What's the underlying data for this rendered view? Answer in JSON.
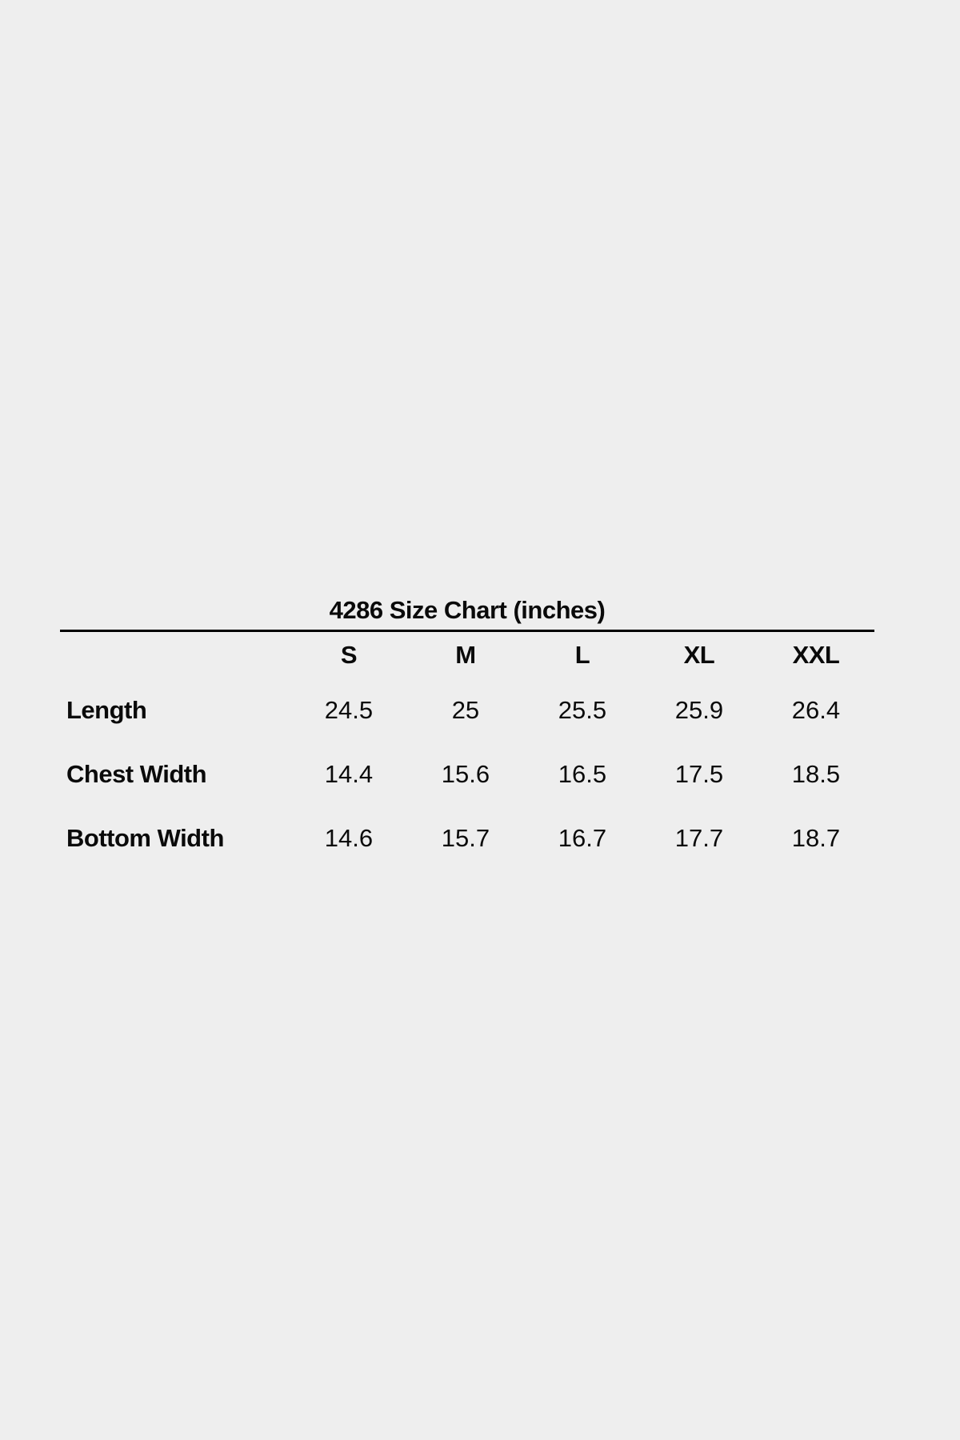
{
  "page": {
    "background_color": "#eeeeee",
    "text_color": "#0a0a0a",
    "rule_color": "#000000"
  },
  "chart_data": {
    "type": "table",
    "title": "4286 Size Chart (inches)",
    "unit": "inches",
    "columns": [
      "S",
      "M",
      "L",
      "XL",
      "XXL"
    ],
    "rows": [
      {
        "label": "Length",
        "values": [
          "24.5",
          "25",
          "25.5",
          "25.9",
          "26.4"
        ]
      },
      {
        "label": "Chest Width",
        "values": [
          "14.4",
          "15.6",
          "16.5",
          "17.5",
          "18.5"
        ]
      },
      {
        "label": "Bottom Width",
        "values": [
          "14.6",
          "15.7",
          "16.7",
          "17.7",
          "18.7"
        ]
      }
    ]
  }
}
